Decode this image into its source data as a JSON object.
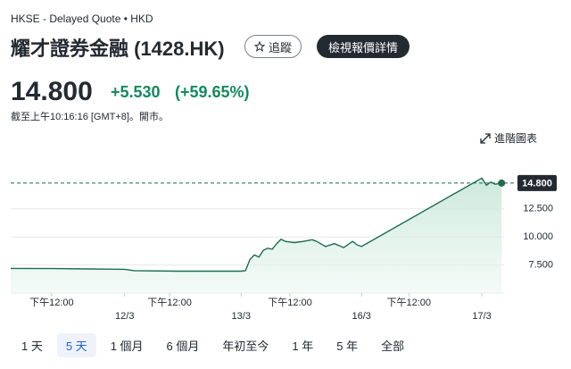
{
  "header": {
    "exchange": "HKSE - Delayed Quote • HKD",
    "title": "耀才證券金融 (1428.HK)",
    "follow_button": "追蹤",
    "quote_button": "檢視報價詳情"
  },
  "quote": {
    "price": "14.800",
    "change": "+5.530",
    "change_percent": "(+59.65%)",
    "timestamp": "截至上午10:16:16 [GMT+8]。開市。"
  },
  "advanced_chart": "進階圖表",
  "chart_data": {
    "type": "line",
    "x": [
      0,
      8.7,
      15.9,
      23.1,
      25,
      34,
      46.7,
      47.6,
      48.5,
      49.4,
      50.3,
      51.2,
      52.1,
      53,
      53.9,
      54.8,
      55.7,
      57.5,
      59.3,
      61.1,
      62,
      63.8,
      65.6,
      67.5,
      69.3,
      70.2,
      71.1,
      95.5,
      96.4,
      97.3,
      98.2,
      99.5
    ],
    "values": [
      7.2,
      7.18,
      7.15,
      7.12,
      7.0,
      6.95,
      6.95,
      7.0,
      8.0,
      8.4,
      8.2,
      8.8,
      9.0,
      8.9,
      9.4,
      9.8,
      9.6,
      9.5,
      9.6,
      9.75,
      9.6,
      9.15,
      9.4,
      9.05,
      9.6,
      9.3,
      9.15,
      15.25,
      14.6,
      14.9,
      14.7,
      14.8
    ],
    "color": "#1e6b52",
    "xlim": [
      0,
      100
    ],
    "ylim": [
      5,
      17.5
    ],
    "yticks": [
      {
        "value": 7.5,
        "label": "7.500"
      },
      {
        "value": 10,
        "label": "10.000"
      },
      {
        "value": 12.5,
        "label": "12.500"
      }
    ],
    "xticks": [
      {
        "value": 8.3,
        "label": "下午12:00"
      },
      {
        "value": 32.2,
        "label": "下午12:00"
      },
      {
        "value": 56.6,
        "label": "下午12:00"
      },
      {
        "value": 80.7,
        "label": "下午12:00"
      }
    ],
    "date_ticks": [
      {
        "value": 23.1,
        "label": "12/3"
      },
      {
        "value": 46.7,
        "label": "13/3"
      },
      {
        "value": 71.1,
        "label": "16/3"
      },
      {
        "value": 95.5,
        "label": "17/3"
      }
    ],
    "current": {
      "value": 14.8,
      "label": "14.800"
    },
    "grid": true
  },
  "ranges": [
    "1 天",
    "5 天",
    "1 個月",
    "6 個月",
    "年初至今",
    "1 年",
    "5 年",
    "全部"
  ],
  "selected_range": 1
}
